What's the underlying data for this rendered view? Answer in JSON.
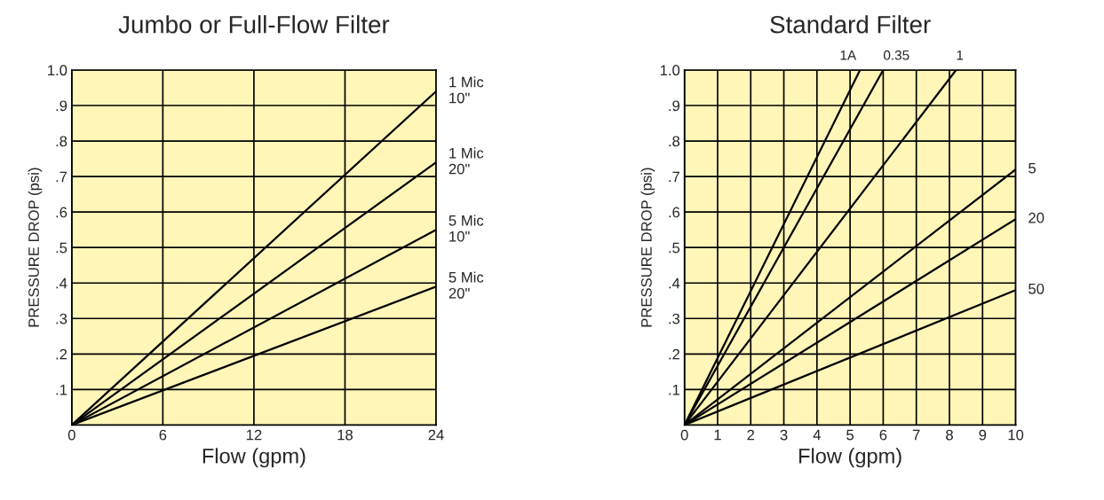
{
  "chart_data": [
    {
      "type": "line",
      "title": "Jumbo or Full-Flow Filter",
      "xlabel": "Flow (gpm)",
      "ylabel": "PRESSURE DROP (psi)",
      "x": [
        0,
        24
      ],
      "series": [
        {
          "name": "1 Mic\n10\"",
          "color": "#000000",
          "values": [
            0,
            0.94
          ]
        },
        {
          "name": "1 Mic\n20\"",
          "color": "#000000",
          "values": [
            0,
            0.74
          ]
        },
        {
          "name": "5 Mic\n10\"",
          "color": "#000000",
          "values": [
            0,
            0.55
          ]
        },
        {
          "name": "5 Mic\n20\"",
          "color": "#000000",
          "values": [
            0,
            0.39
          ]
        }
      ],
      "xlim": [
        0,
        24
      ],
      "xticks": [
        0,
        6,
        12,
        18,
        24
      ],
      "ylim": [
        0,
        1.0
      ],
      "yticks": [
        {
          "value": 0.1,
          "label": ".1"
        },
        {
          "value": 0.2,
          "label": ".2"
        },
        {
          "value": 0.3,
          "label": ".3"
        },
        {
          "value": 0.4,
          "label": ".4"
        },
        {
          "value": 0.5,
          "label": ".5"
        },
        {
          "value": 0.6,
          "label": ".6"
        },
        {
          "value": 0.7,
          "label": ".7"
        },
        {
          "value": 0.8,
          "label": ".8"
        },
        {
          "value": 0.9,
          "label": ".9"
        },
        {
          "value": 1.0,
          "label": "1.0"
        }
      ],
      "grid": true,
      "legend": false
    },
    {
      "type": "line",
      "title": "Standard Filter",
      "xlabel": "Flow (gpm)",
      "ylabel": "PRESSURE DROP (psi)",
      "series": [
        {
          "name": "1A",
          "color": "#000000",
          "x": [
            0,
            5.3
          ],
          "values": [
            0,
            1.0
          ]
        },
        {
          "name": "0.35",
          "color": "#000000",
          "x": [
            0,
            6.0
          ],
          "values": [
            0,
            1.0
          ]
        },
        {
          "name": "1",
          "color": "#000000",
          "x": [
            0,
            8.2
          ],
          "values": [
            0,
            1.0
          ]
        },
        {
          "name": "5",
          "color": "#000000",
          "x": [
            0,
            10
          ],
          "values": [
            0,
            0.72
          ]
        },
        {
          "name": "20",
          "color": "#000000",
          "x": [
            0,
            10
          ],
          "values": [
            0,
            0.58
          ]
        },
        {
          "name": "50",
          "color": "#000000",
          "x": [
            0,
            10
          ],
          "values": [
            0,
            0.38
          ]
        }
      ],
      "xlim": [
        0,
        10
      ],
      "xticks": [
        0,
        1,
        2,
        3,
        4,
        5,
        6,
        7,
        8,
        9,
        10
      ],
      "ylim": [
        0,
        1.0
      ],
      "yticks": [
        {
          "value": 0.1,
          "label": ".1"
        },
        {
          "value": 0.2,
          "label": ".2"
        },
        {
          "value": 0.3,
          "label": ".3"
        },
        {
          "value": 0.4,
          "label": ".4"
        },
        {
          "value": 0.5,
          "label": ".5"
        },
        {
          "value": 0.6,
          "label": ".6"
        },
        {
          "value": 0.7,
          "label": ".7"
        },
        {
          "value": 0.8,
          "label": ".8"
        },
        {
          "value": 0.9,
          "label": ".9"
        },
        {
          "value": 1.0,
          "label": "1.0"
        }
      ],
      "grid": true,
      "legend": false
    }
  ]
}
